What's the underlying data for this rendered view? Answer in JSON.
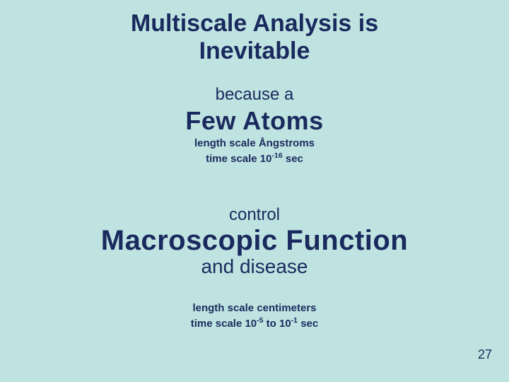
{
  "colors": {
    "background": "#bfe3e0",
    "text": "#1a2a5e"
  },
  "title_line1": "Multiscale Analysis is",
  "title_line2": "Inevitable",
  "because": "because a",
  "few_atoms": "Few Atoms",
  "length_scale_1": "length scale Ångstroms",
  "time_scale_1_pre": "time scale 10",
  "time_scale_1_exp": "-16",
  "time_scale_1_post": " sec",
  "control": "control",
  "macro": "Macroscopic Function",
  "disease": "and disease",
  "length_scale_2": "length scale centimeters",
  "time_scale_2_pre": "time scale 10",
  "time_scale_2_exp1": "-5",
  "time_scale_2_mid": " to 10",
  "time_scale_2_exp2": "-1",
  "time_scale_2_post": " sec",
  "page_number": "27"
}
